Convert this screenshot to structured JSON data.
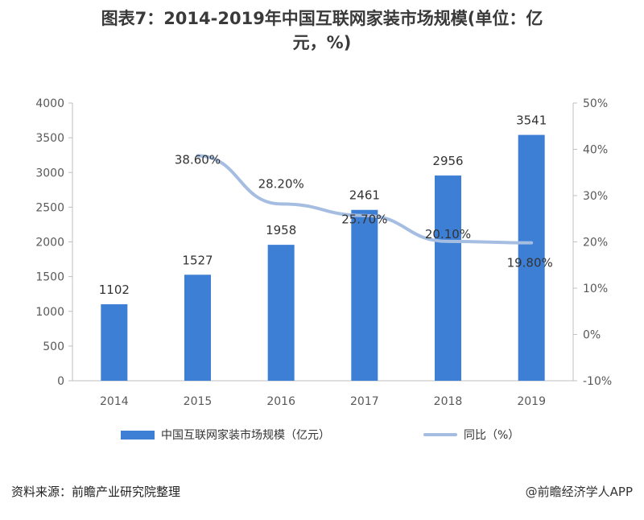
{
  "title": {
    "line1": "图表7：2014-2019年中国互联网家装市场规模(单位：亿",
    "line2": "元，%)"
  },
  "chart_data": {
    "type": "bar",
    "categories": [
      "2014",
      "2015",
      "2016",
      "2017",
      "2018",
      "2019"
    ],
    "series": [
      {
        "name": "中国互联网家装市场规模（亿元）",
        "type": "bar",
        "axis": "left",
        "values": [
          1102,
          1527,
          1958,
          2461,
          2956,
          3541
        ],
        "labels": [
          "1102",
          "1527",
          "1958",
          "2461",
          "2956",
          "3541"
        ],
        "color": "#3d7fd5"
      },
      {
        "name": "同比（%）",
        "type": "line",
        "axis": "right",
        "values": [
          null,
          38.6,
          28.2,
          25.7,
          20.1,
          19.8
        ],
        "labels": [
          null,
          "38.60%",
          "28.20%",
          "25.70%",
          "20.10%",
          "19.80%"
        ],
        "color": "#a4bde0"
      }
    ],
    "y_left": {
      "min": 0,
      "max": 4000,
      "ticks": [
        "0",
        "500",
        "1000",
        "1500",
        "2000",
        "2500",
        "3000",
        "3500",
        "4000"
      ]
    },
    "y_right": {
      "min": -10,
      "max": 50,
      "ticks": [
        "-10%",
        "0%",
        "10%",
        "20%",
        "30%",
        "40%",
        "50%"
      ]
    },
    "grid": false,
    "legend_position": "bottom"
  },
  "footer": {
    "source": "资料来源：前瞻产业研究院整理",
    "brand": "@前瞻经济学人APP"
  }
}
